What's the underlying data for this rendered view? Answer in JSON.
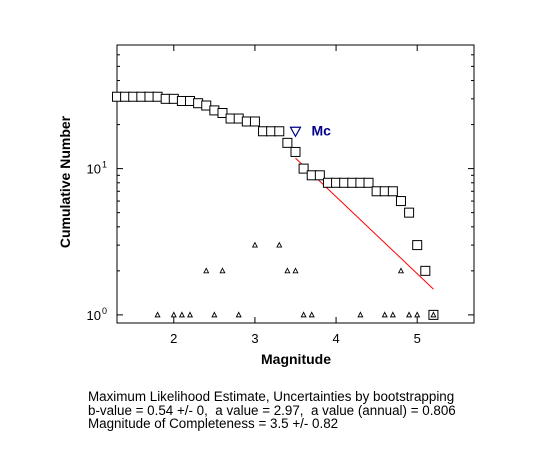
{
  "chart_data": {
    "type": "scatter",
    "xlabel": "Magnitude",
    "ylabel": "Cumulative Number",
    "xlim": [
      1.3,
      5.7
    ],
    "ylim": [
      0.88,
      70
    ],
    "y_scale": "log",
    "grid": false,
    "x_ticks": [
      {
        "value": 2,
        "label": "2"
      },
      {
        "value": 3,
        "label": "3"
      },
      {
        "value": 4,
        "label": "4"
      },
      {
        "value": 5,
        "label": "5"
      }
    ],
    "y_ticks": [
      {
        "value": 1,
        "base": "10",
        "exp": "0"
      },
      {
        "value": 10,
        "base": "10",
        "exp": "1"
      }
    ],
    "colors": {
      "fit_line": "#ff0000",
      "mc_marker": "#00008b",
      "axes": "#000000"
    },
    "series": [
      {
        "marker": "square",
        "x": [
          1.3,
          1.4,
          1.5,
          1.6,
          1.7,
          1.8,
          1.9,
          2.0,
          2.1,
          2.2,
          2.3,
          2.4,
          2.5,
          2.6,
          2.7,
          2.8,
          2.9,
          3.0,
          3.1,
          3.2,
          3.3,
          3.4,
          3.5,
          3.6,
          3.7,
          3.8,
          3.9,
          4.0,
          4.1,
          4.2,
          4.3,
          4.4,
          4.5,
          4.6,
          4.7,
          4.8,
          4.9,
          5.0,
          5.1,
          5.2
        ],
        "y": [
          31,
          31,
          31,
          31,
          31,
          31,
          30,
          30,
          29,
          29,
          28,
          27,
          25,
          24,
          22,
          22,
          21,
          21,
          18,
          18,
          18,
          15,
          13,
          10,
          9,
          9,
          8,
          8,
          8,
          8,
          8,
          8,
          7,
          7,
          7,
          6,
          5,
          3,
          2,
          1
        ]
      },
      {
        "marker": "triangle-small",
        "x": [
          1.8,
          2.0,
          2.1,
          2.2,
          2.4,
          2.5,
          2.6,
          2.8,
          3.0,
          3.3,
          3.4,
          3.5,
          3.6,
          3.7,
          4.3,
          4.6,
          4.7,
          4.8,
          4.9,
          5.0,
          5.2
        ],
        "y": [
          1,
          1,
          1,
          1,
          2,
          1,
          2,
          1,
          3,
          3,
          2,
          2,
          1,
          1,
          1,
          1,
          1,
          2,
          1,
          1,
          1
        ]
      }
    ],
    "fit_line": {
      "x": [
        3.5,
        5.2
      ],
      "y": [
        11.8,
        1.5
      ]
    },
    "mc_marker": {
      "x": 3.5,
      "y": 18,
      "label": "Mc"
    }
  },
  "stats_text": {
    "line1": "Maximum Likelihood Estimate, Uncertainties by bootstrapping",
    "line2": "b-value = 0.54 +/- 0,  a value = 2.97,  a value (annual) = 0.806",
    "line3": "Magnitude of Completeness = 3.5 +/- 0.82"
  }
}
